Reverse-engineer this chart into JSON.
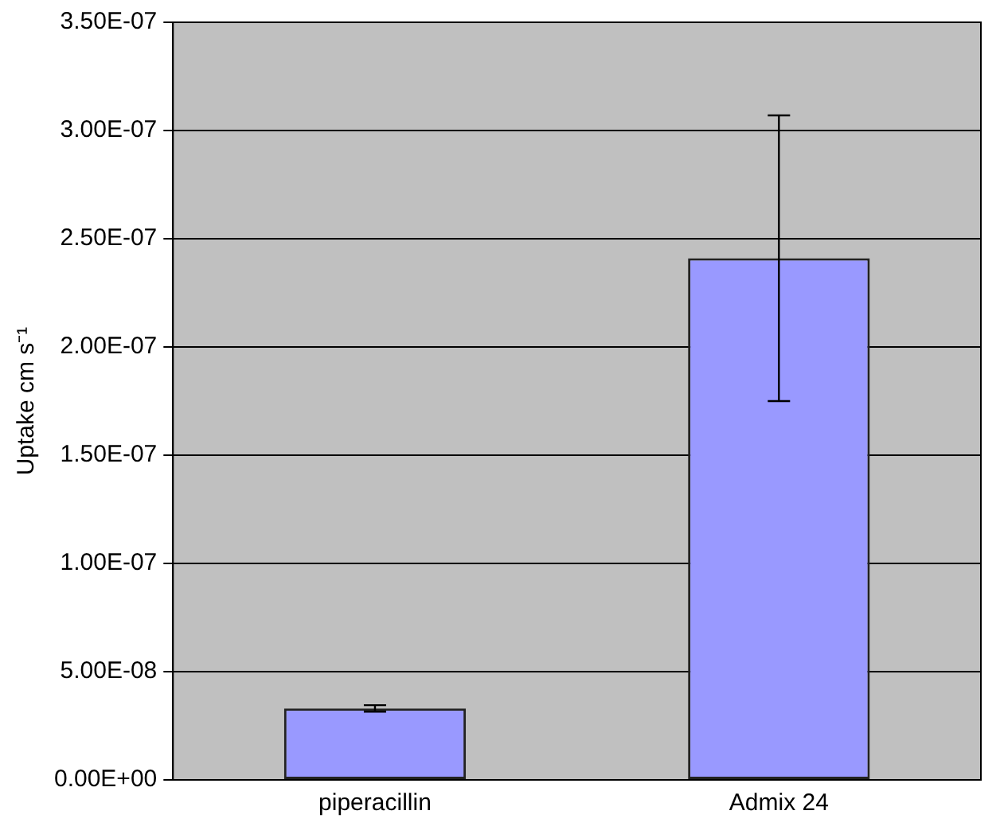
{
  "chart_data": {
    "type": "bar",
    "ylabel": "Uptake cm s⁻¹",
    "categories": [
      "piperacillin",
      "Admix 24"
    ],
    "values": [
      3.3e-08,
      2.41e-07
    ],
    "errors": [
      1.5e-09,
      6.6e-08
    ],
    "color": "#9999ff",
    "ylim": [
      0,
      3.5e-07
    ],
    "yticks": [
      {
        "value": 0,
        "label": "0.00E+00"
      },
      {
        "value": 5e-08,
        "label": "5.00E-08"
      },
      {
        "value": 1e-07,
        "label": "1.00E-07"
      },
      {
        "value": 1.5e-07,
        "label": "1.50E-07"
      },
      {
        "value": 2e-07,
        "label": "2.00E-07"
      },
      {
        "value": 2.5e-07,
        "label": "2.50E-07"
      },
      {
        "value": 3e-07,
        "label": "3.00E-07"
      },
      {
        "value": 3.5e-07,
        "label": "3.50E-07"
      }
    ],
    "grid": "y",
    "legend": false
  }
}
